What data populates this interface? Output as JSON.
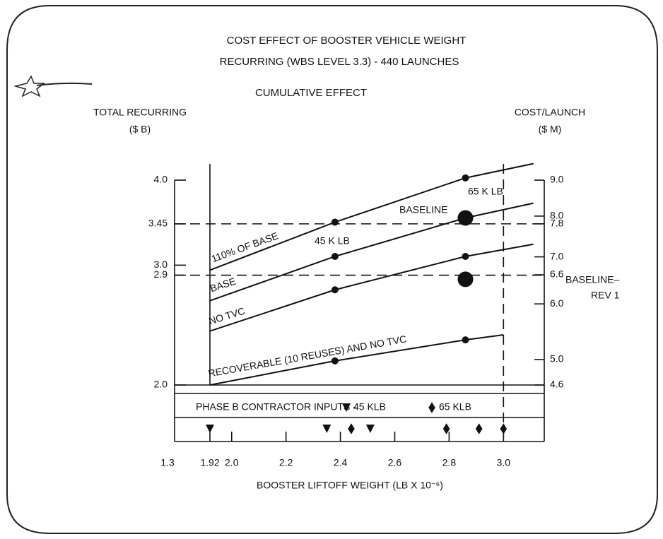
{
  "chart_data": {
    "type": "line",
    "title": "COST EFFECT OF BOOSTER VEHICLE WEIGHT",
    "subtitle": "RECURRING   (WBS LEVEL 3.3) - 440 LAUNCHES",
    "section_title": "CUMULATIVE EFFECT",
    "y_label": [
      "TOTAL RECURRING",
      "($ B)"
    ],
    "y2_label": [
      "COST/LAUNCH",
      "($ M)"
    ],
    "x_label": "BOOSTER LIFTOFF WEIGHT (LB X 10⁻⁶)",
    "x_break_label": "1.3",
    "xlim": [
      1.79,
      3.15
    ],
    "xticks": [
      1.92,
      {
        "value": 2.0,
        "label": "2.0"
      },
      2.2,
      2.4,
      2.6,
      2.8,
      {
        "value": 3.0,
        "label": "3.0"
      }
    ],
    "ylim": [
      2,
      4
    ],
    "yscale": "log",
    "yticks": [
      {
        "value": 4,
        "label": "4.0"
      },
      3.45,
      {
        "value": 3,
        "label": "3.0"
      },
      2.9,
      {
        "value": 2,
        "label": "2.0"
      }
    ],
    "y2lim": [
      4.6,
      9.0
    ],
    "y2scale": "log",
    "y2ticks": [
      {
        "value": 9,
        "label": "9.0"
      },
      {
        "value": 8,
        "label": "8.0"
      },
      7.8,
      {
        "value": 7,
        "label": "7.0"
      },
      6.6,
      {
        "value": 6,
        "label": "6.0"
      },
      {
        "value": 5,
        "label": "5.0"
      },
      4.6
    ],
    "series": [
      {
        "name": "110% OF BASE",
        "color": "#111111",
        "x": [
          1.92,
          2.38,
          2.86,
          3.11
        ],
        "values": [
          2.95,
          3.47,
          4.03,
          4.23
        ]
      },
      {
        "name": "BASE",
        "color": "#111111",
        "x": [
          1.92,
          2.38,
          2.86,
          3.11
        ],
        "values": [
          2.66,
          3.09,
          3.52,
          3.7
        ]
      },
      {
        "name": "NO TVC",
        "color": "#111111",
        "x": [
          1.92,
          2.38,
          2.86,
          3.11
        ],
        "values": [
          2.4,
          2.76,
          3.09,
          3.22
        ]
      },
      {
        "name": "RECOVERABLE (10 REUSES) AND NO TVC",
        "color": "#111111",
        "x": [
          1.92,
          2.38,
          2.86,
          3.0
        ],
        "values": [
          2.0,
          2.17,
          2.33,
          2.37
        ]
      }
    ],
    "highlight_points": [
      {
        "x": 2.86,
        "value": 3.52
      },
      {
        "x": 2.86,
        "value": 2.86
      }
    ],
    "hlines": [
      3.45,
      2.9
    ],
    "vlines": [
      {
        "x": 1.92,
        "style": "solid"
      },
      {
        "x": 3.0,
        "style": "dashed"
      }
    ],
    "annotations": [
      "45 K LB",
      "65 K LB",
      "BASELINE",
      "BASELINE–",
      "REV 1"
    ],
    "legend_title": "PHASE B CONTRACTOR INPUTS -",
    "contractor_inputs": [
      {
        "name": "45 KLB",
        "shape": "triangle",
        "x": [
          1.92,
          2.35,
          2.51
        ]
      },
      {
        "name": "65 KLB",
        "shape": "diamond",
        "x": [
          2.44,
          2.79,
          2.91,
          3.0
        ]
      }
    ]
  }
}
